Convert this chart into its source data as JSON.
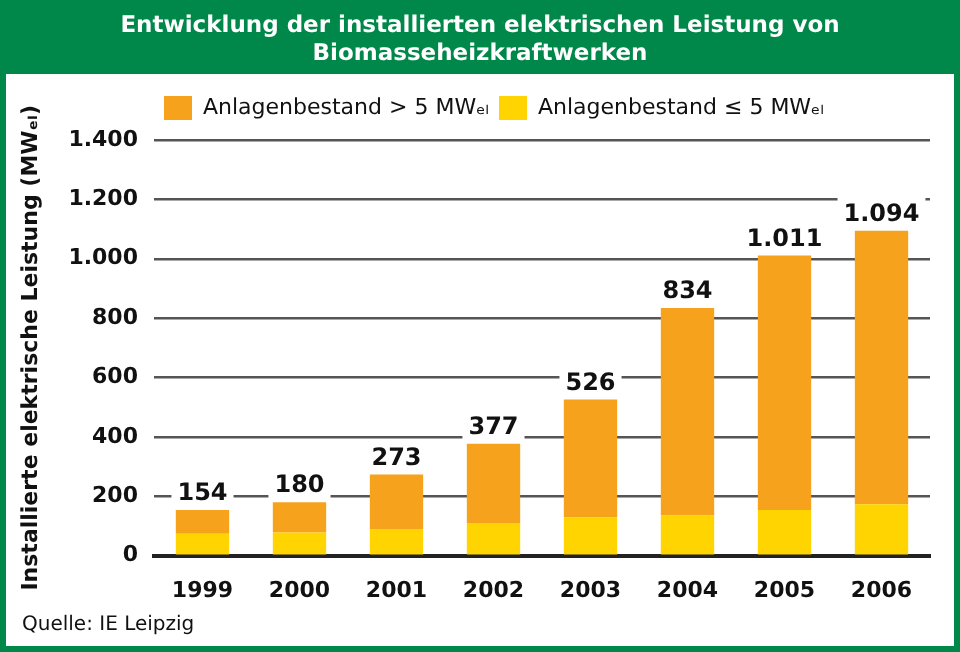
{
  "chart_data": {
    "type": "bar",
    "title": "Entwicklung der installierten elektrischen Leistung von Biomasseheizkraftwerken",
    "ylabel": "Installierte elektrische Leistung (MWₑₗ)",
    "categories": [
      "1999",
      "2000",
      "2001",
      "2002",
      "2003",
      "2004",
      "2005",
      "2006"
    ],
    "stacked": true,
    "series": [
      {
        "name": "Anlagenbestand ≤ 5 MWₑₗ",
        "color": "#ffd400",
        "values": [
          74,
          78,
          90,
          110,
          128,
          135,
          154,
          173
        ]
      },
      {
        "name": "Anlagenbestand > 5 MWₑₗ",
        "color": "#f7a21c",
        "values": [
          80,
          102,
          183,
          267,
          398,
          699,
          857,
          921
        ]
      }
    ],
    "totals": [
      "154",
      "180",
      "273",
      "377",
      "526",
      "834",
      "1.011",
      "1.094"
    ],
    "ylim": [
      0,
      1400
    ],
    "yticks": [
      {
        "value": 0,
        "label": "0"
      },
      {
        "value": 200,
        "label": "200"
      },
      {
        "value": 400,
        "label": "400"
      },
      {
        "value": 600,
        "label": "600"
      },
      {
        "value": 800,
        "label": "800"
      },
      {
        "value": 1000,
        "label": "1.000"
      },
      {
        "value": 1200,
        "label": "1.200"
      },
      {
        "value": 1400,
        "label": "1.400"
      }
    ],
    "grid": "y",
    "legend": "top left",
    "annotations": [
      "Quelle: IE Leipzig"
    ]
  }
}
